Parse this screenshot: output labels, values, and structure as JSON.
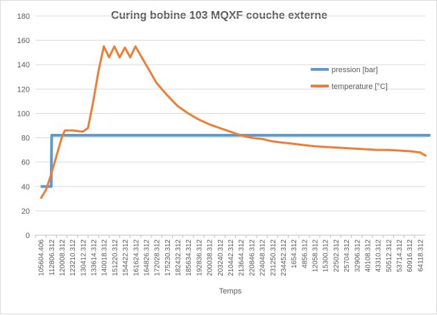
{
  "chart_data": {
    "type": "line",
    "title": "Curing bobine 103 MQXF couche externe",
    "xlabel": "Temps",
    "ylabel": "",
    "ylim": [
      0,
      180
    ],
    "yticks": [
      0,
      20,
      40,
      60,
      80,
      100,
      120,
      140,
      160,
      180
    ],
    "grid": "horizontal",
    "legend_position": "right",
    "categories": [
      "105604.406",
      "112806.312",
      "120008.312",
      "123210.312",
      "130412.312",
      "133614.312",
      "140018.312",
      "151220.312",
      "154422.312",
      "161624.312",
      "164826.312",
      "172028.312",
      "175230.312",
      "182432.312",
      "185634.312",
      "192836.312",
      "200038.312",
      "203240.312",
      "210442.312",
      "213644.312",
      "220846.312",
      "224048.312",
      "231250.312",
      "234452.312",
      "1654.312",
      "4856.312",
      "12058.312",
      "15300.312",
      "22502.312",
      "25704.312",
      "32906.312",
      "40108.312",
      "43310.312",
      "50512.312",
      "53714.312",
      "60916.312",
      "64118.312"
    ],
    "series": [
      {
        "name": "pression [bar]",
        "color": "#5B9BD5",
        "points": [
          [
            0,
            40
          ],
          [
            1.0,
            40
          ],
          [
            1.05,
            82
          ],
          [
            37,
            82
          ]
        ]
      },
      {
        "name": "temperature [°C]",
        "color": "#ED7D31",
        "points": [
          [
            0,
            30
          ],
          [
            0.5,
            37
          ],
          [
            1.0,
            50
          ],
          [
            1.5,
            65
          ],
          [
            2.0,
            80
          ],
          [
            2.3,
            86
          ],
          [
            3.0,
            86
          ],
          [
            4.0,
            85
          ],
          [
            4.5,
            88
          ],
          [
            5.0,
            110
          ],
          [
            5.5,
            135
          ],
          [
            6.0,
            155
          ],
          [
            6.5,
            146
          ],
          [
            7.0,
            155
          ],
          [
            7.5,
            146
          ],
          [
            8.0,
            154
          ],
          [
            8.5,
            146
          ],
          [
            9.0,
            155
          ],
          [
            10,
            140
          ],
          [
            11,
            125
          ],
          [
            12,
            115
          ],
          [
            13,
            106
          ],
          [
            14,
            100
          ],
          [
            15,
            95
          ],
          [
            16,
            91
          ],
          [
            17,
            88
          ],
          [
            18,
            85
          ],
          [
            19,
            82
          ],
          [
            20,
            80
          ],
          [
            21,
            79
          ],
          [
            22,
            77
          ],
          [
            23,
            76
          ],
          [
            24,
            75
          ],
          [
            25,
            74
          ],
          [
            26,
            73
          ],
          [
            27,
            72.5
          ],
          [
            28,
            72
          ],
          [
            29,
            71.5
          ],
          [
            30,
            71
          ],
          [
            31,
            70.5
          ],
          [
            32,
            70
          ],
          [
            33,
            70
          ],
          [
            34,
            69.5
          ],
          [
            35,
            69
          ],
          [
            36,
            68
          ],
          [
            36.6,
            65
          ]
        ]
      }
    ]
  }
}
